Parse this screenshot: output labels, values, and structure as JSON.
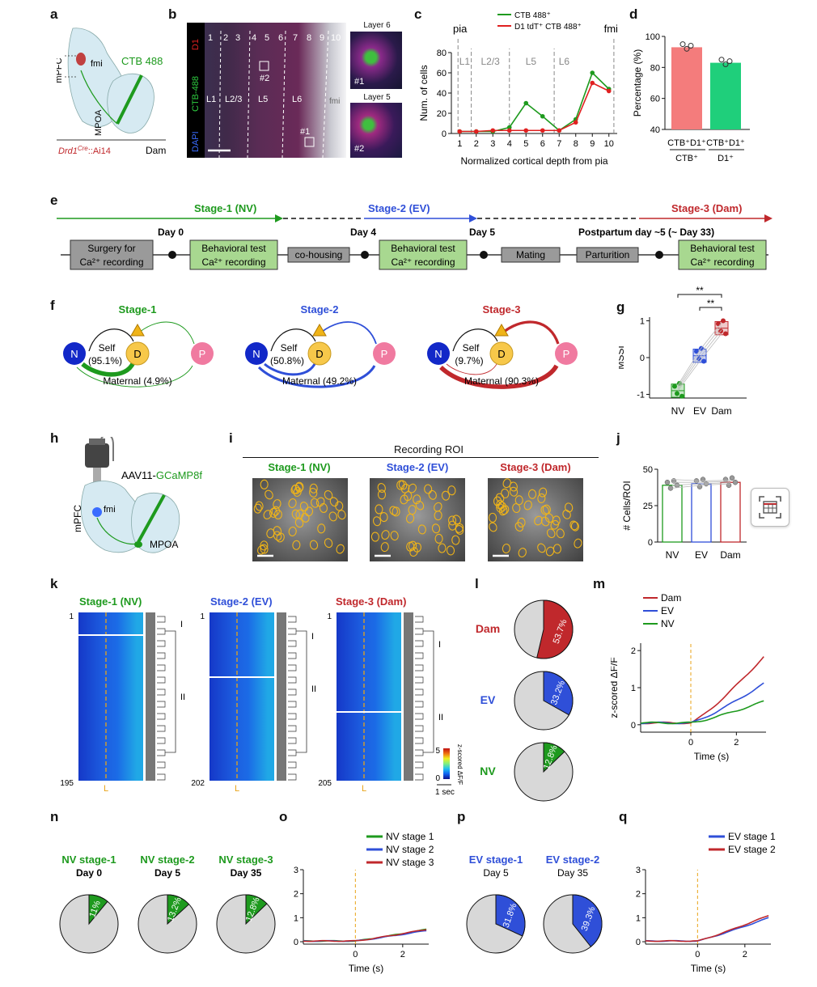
{
  "panels": {
    "a": "a",
    "b": "b",
    "c": "c",
    "d": "d",
    "e": "e",
    "f": "f",
    "g": "g",
    "h": "h",
    "i": "i",
    "j": "j",
    "k": "k",
    "l": "l",
    "m": "m",
    "n": "n",
    "o": "o",
    "p": "p",
    "q": "q"
  },
  "panel_a": {
    "mpfc": "mPFC",
    "fmi": "fmi",
    "tracer": "CTB 488",
    "mpoa": "MPOA",
    "genotype_main": "Drd1",
    "genotype_sup": "Cre",
    "genotype_rest": "::Ai14",
    "group": "Dam"
  },
  "panel_b": {
    "ch_d1": "D1",
    "ch_ctb": "CTB-488",
    "ch_dapi": "DAPI",
    "layers_top": [
      "1",
      "2",
      "3",
      "4",
      "5",
      "6",
      "7",
      "8",
      "9",
      "10"
    ],
    "L1": "L1",
    "L23": "L2/3",
    "L5": "L5",
    "L6": "L6",
    "fmi": "fmi",
    "roi2": "#2",
    "roi1": "#1",
    "inset1_title": "Layer 6",
    "inset1_id": "#1",
    "inset2_title": "Layer 5",
    "inset2_id": "#2"
  },
  "chart_data": [
    {
      "id": "c",
      "type": "line",
      "xlabel": "Normalized cortical depth from pia",
      "ylabel": "Num. of cells",
      "x": [
        1,
        2,
        3,
        4,
        5,
        6,
        7,
        8,
        9,
        10
      ],
      "ylim": [
        0,
        80
      ],
      "yticks": [
        0,
        20,
        40,
        60,
        80
      ],
      "series": [
        {
          "name": "CTB 488⁺",
          "color": "#1e9a1e",
          "values": [
            2,
            2,
            2,
            6,
            30,
            17,
            3,
            14,
            60,
            44
          ]
        },
        {
          "name": "D1 tdT⁺ CTB 488⁺",
          "color": "#e02020",
          "values": [
            2,
            2,
            3,
            3,
            3,
            3,
            3,
            11,
            50,
            42
          ]
        }
      ],
      "annotations": {
        "pia": "pia",
        "fmi": "fmi",
        "L1": "L1",
        "L23": "L2/3",
        "L5": "L5",
        "L6": "L6"
      }
    },
    {
      "id": "d",
      "type": "bar",
      "ylabel": "Percentage (%)",
      "ylim": [
        40,
        100
      ],
      "yticks": [
        40,
        60,
        80,
        100
      ],
      "categories": [
        "CTB⁺D1⁺ / CTB⁺",
        "CTB⁺D1⁺ / D1⁺"
      ],
      "cat_num": [
        "CTB⁺D1⁺",
        "CTB⁺D1⁺"
      ],
      "cat_den": [
        "CTB⁺",
        "D1⁺"
      ],
      "values": [
        93,
        83
      ],
      "colors": [
        "#f47c7c",
        "#1fcf7b"
      ]
    },
    {
      "id": "g",
      "type": "box",
      "ylabel": "MSSI",
      "categories": [
        "NV",
        "EV",
        "Dam"
      ],
      "ylim": [
        -1,
        1
      ],
      "yticks": [
        -1,
        0,
        1
      ],
      "medians": [
        -0.9,
        0.05,
        0.8
      ],
      "colors": [
        "#1e9a1e",
        "#2f4fd8",
        "#c0282c"
      ],
      "sig": [
        "**",
        "**"
      ]
    },
    {
      "id": "j",
      "type": "bar",
      "ylabel": "# Cells/ROI",
      "categories": [
        "NV",
        "EV",
        "Dam"
      ],
      "ylim": [
        0,
        50
      ],
      "yticks": [
        0,
        25,
        50
      ],
      "values": [
        39,
        40,
        41
      ],
      "colors": [
        "#1e9a1e",
        "#2f4fd8",
        "#c0282c"
      ]
    },
    {
      "id": "l",
      "type": "pie",
      "labels": [
        "Dam",
        "EV",
        "NV"
      ],
      "values": [
        53.7,
        33.2,
        12.8
      ],
      "pct_text": [
        "53.7%",
        "33.2%",
        "12.8%"
      ],
      "colors": [
        "#c0282c",
        "#2f4fd8",
        "#1e9a1e"
      ]
    },
    {
      "id": "m",
      "type": "line",
      "xlabel": "Time (s)",
      "ylabel": "z-scored ΔF/F",
      "xticks": [
        0,
        2
      ],
      "yticks": [
        0,
        1,
        2
      ],
      "series": [
        {
          "name": "Dam",
          "color": "#c0282c",
          "end": 1.85
        },
        {
          "name": "EV",
          "color": "#2f4fd8",
          "end": 1.1
        },
        {
          "name": "NV",
          "color": "#1e9a1e",
          "end": 0.6
        }
      ]
    },
    {
      "id": "n",
      "type": "pie",
      "titles": [
        "NV stage-1",
        "NV stage-2",
        "NV stage-3"
      ],
      "days": [
        "Day 0",
        "Day 5",
        "Day 35"
      ],
      "values": [
        11,
        13.2,
        12.8
      ],
      "pct_text": [
        "11%",
        "13.2%",
        "12.8%"
      ],
      "color": "#1e9a1e"
    },
    {
      "id": "o",
      "type": "line",
      "xlabel": "Time (s)",
      "ylabel": "z-scored ΔF/F",
      "xticks": [
        0,
        2
      ],
      "yticks": [
        0,
        1,
        2,
        3
      ],
      "series": [
        {
          "name": "NV stage 1",
          "color": "#1e9a1e"
        },
        {
          "name": "NV stage 2",
          "color": "#2f4fd8"
        },
        {
          "name": "NV stage 3",
          "color": "#c0282c"
        }
      ]
    },
    {
      "id": "p",
      "type": "pie",
      "titles": [
        "EV stage-1",
        "EV stage-2"
      ],
      "days": [
        "Day 5",
        "Day 35"
      ],
      "values": [
        31.8,
        39.3
      ],
      "pct_text": [
        "31.8%",
        "39.3%"
      ],
      "color": "#2f4fd8"
    },
    {
      "id": "q",
      "type": "line",
      "xlabel": "Time (s)",
      "ylabel": "z-scored ΔF/F",
      "xticks": [
        0,
        2
      ],
      "yticks": [
        0,
        1,
        2,
        3
      ],
      "series": [
        {
          "name": "EV stage 1",
          "color": "#2f4fd8"
        },
        {
          "name": "EV stage 2",
          "color": "#c0282c"
        }
      ]
    }
  ],
  "panel_e": {
    "stage1": "Stage-1 (NV)",
    "stage2": "Stage-2 (EV)",
    "stage3": "Stage-3 (Dam)",
    "day0": "Day 0",
    "day4": "Day 4",
    "day5": "Day 5",
    "postpartum": "Postpartum  day ~5 (~ Day 33)",
    "box_surgery_1": "Surgery for",
    "box_surgery_2": "Ca²⁺ recording",
    "box_behav_1": "Behavioral test",
    "box_behav_2": "Ca²⁺ recording",
    "cohousing": "co-housing",
    "mating": "Mating",
    "parturition": "Parturition"
  },
  "panel_f": [
    {
      "title": "Stage-1",
      "self": "Self",
      "self_pct": "(95.1%)",
      "maternal": "Maternal (4.9%)",
      "n": "N",
      "d": "D",
      "p": "P"
    },
    {
      "title": "Stage-2",
      "self": "Self",
      "self_pct": "(50.8%)",
      "maternal": "Maternal (49.2%)",
      "n": "N",
      "d": "D",
      "p": "P"
    },
    {
      "title": "Stage-3",
      "self": "Self",
      "self_pct": "(9.7%)",
      "maternal": "Maternal (90.3%)",
      "n": "N",
      "d": "D",
      "p": "P"
    }
  ],
  "panel_h": {
    "virus_pre": "AAV11-",
    "virus_post": "GCaMP8f",
    "fmi": "fmi",
    "mpfc": "mPFC",
    "mpoa": "MPOA"
  },
  "panel_i": {
    "title": "Recording ROI",
    "stages": [
      "Stage-1 (NV)",
      "Stage-2 (EV)",
      "Stage-3 (Dam)"
    ]
  },
  "panel_k": {
    "stages": [
      "Stage-1 (NV)",
      "Stage-2 (EV)",
      "Stage-3 (Dam)"
    ],
    "first": [
      "1",
      "1",
      "1"
    ],
    "last": [
      "195",
      "202",
      "205"
    ],
    "l_mark": "L",
    "cl1": "I",
    "cl2": "II",
    "cbar_max": "5",
    "cbar_min": "0",
    "cbar_label": "z-scored ΔF/F",
    "scale": "1 sec"
  },
  "colors": {
    "green": "#1e9a1e",
    "blue": "#2f4fd8",
    "red": "#c0282c",
    "yellow": "#f0b418",
    "gold_dash": "#e8a317"
  }
}
